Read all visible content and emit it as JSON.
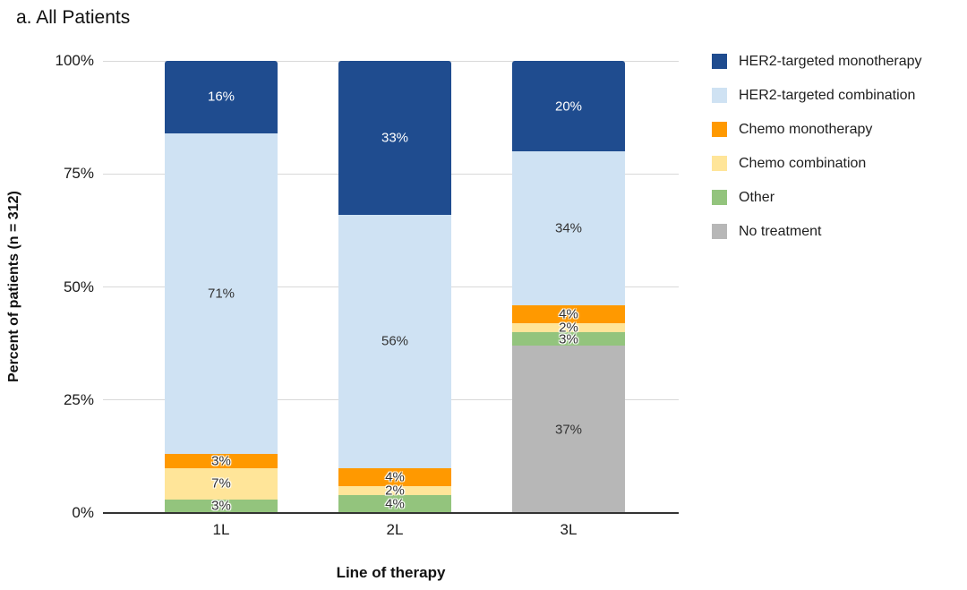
{
  "title": "a. All Patients",
  "chart_data": {
    "type": "bar",
    "stacked": true,
    "title": "a. All Patients",
    "xlabel": "Line of therapy",
    "ylabel": "Percent of patients (n = 312)",
    "categories": [
      "1L",
      "2L",
      "3L"
    ],
    "series": [
      {
        "name": "HER2-targeted monotherapy",
        "color": "#1F4C8F",
        "label_color": "#ffffff",
        "values": [
          16,
          33,
          20
        ]
      },
      {
        "name": "HER2-targeted combination",
        "color": "#CFE2F3",
        "label_color": "#333333",
        "values": [
          71,
          56,
          34
        ]
      },
      {
        "name": "Chemo monotherapy",
        "color": "#FF9900",
        "label_color": "#333333",
        "values": [
          3,
          4,
          4
        ]
      },
      {
        "name": "Chemo combination",
        "color": "#FFE599",
        "label_color": "#333333",
        "values": [
          7,
          2,
          2
        ]
      },
      {
        "name": "Other",
        "color": "#93C47D",
        "label_color": "#333333",
        "values": [
          3,
          4,
          3
        ]
      },
      {
        "name": "No treatment",
        "color": "#B7B7B7",
        "label_color": "#333333",
        "values": [
          0,
          0,
          37
        ]
      }
    ],
    "stack_order_bottom_to_top": [
      "No treatment",
      "Other",
      "Chemo combination",
      "Chemo monotherapy",
      "HER2-targeted combination",
      "HER2-targeted monotherapy"
    ],
    "value_suffix": "%",
    "yticks": [
      {
        "value": 0,
        "label": "0%"
      },
      {
        "value": 25,
        "label": "25%"
      },
      {
        "value": 50,
        "label": "50%"
      },
      {
        "value": 75,
        "label": "75%"
      },
      {
        "value": 100,
        "label": "100%"
      }
    ],
    "ylim": [
      0,
      100
    ],
    "grid": true,
    "legend_position": "top-right",
    "gridline_color": "#d9d9d9",
    "axis_line_color": "#333333"
  }
}
